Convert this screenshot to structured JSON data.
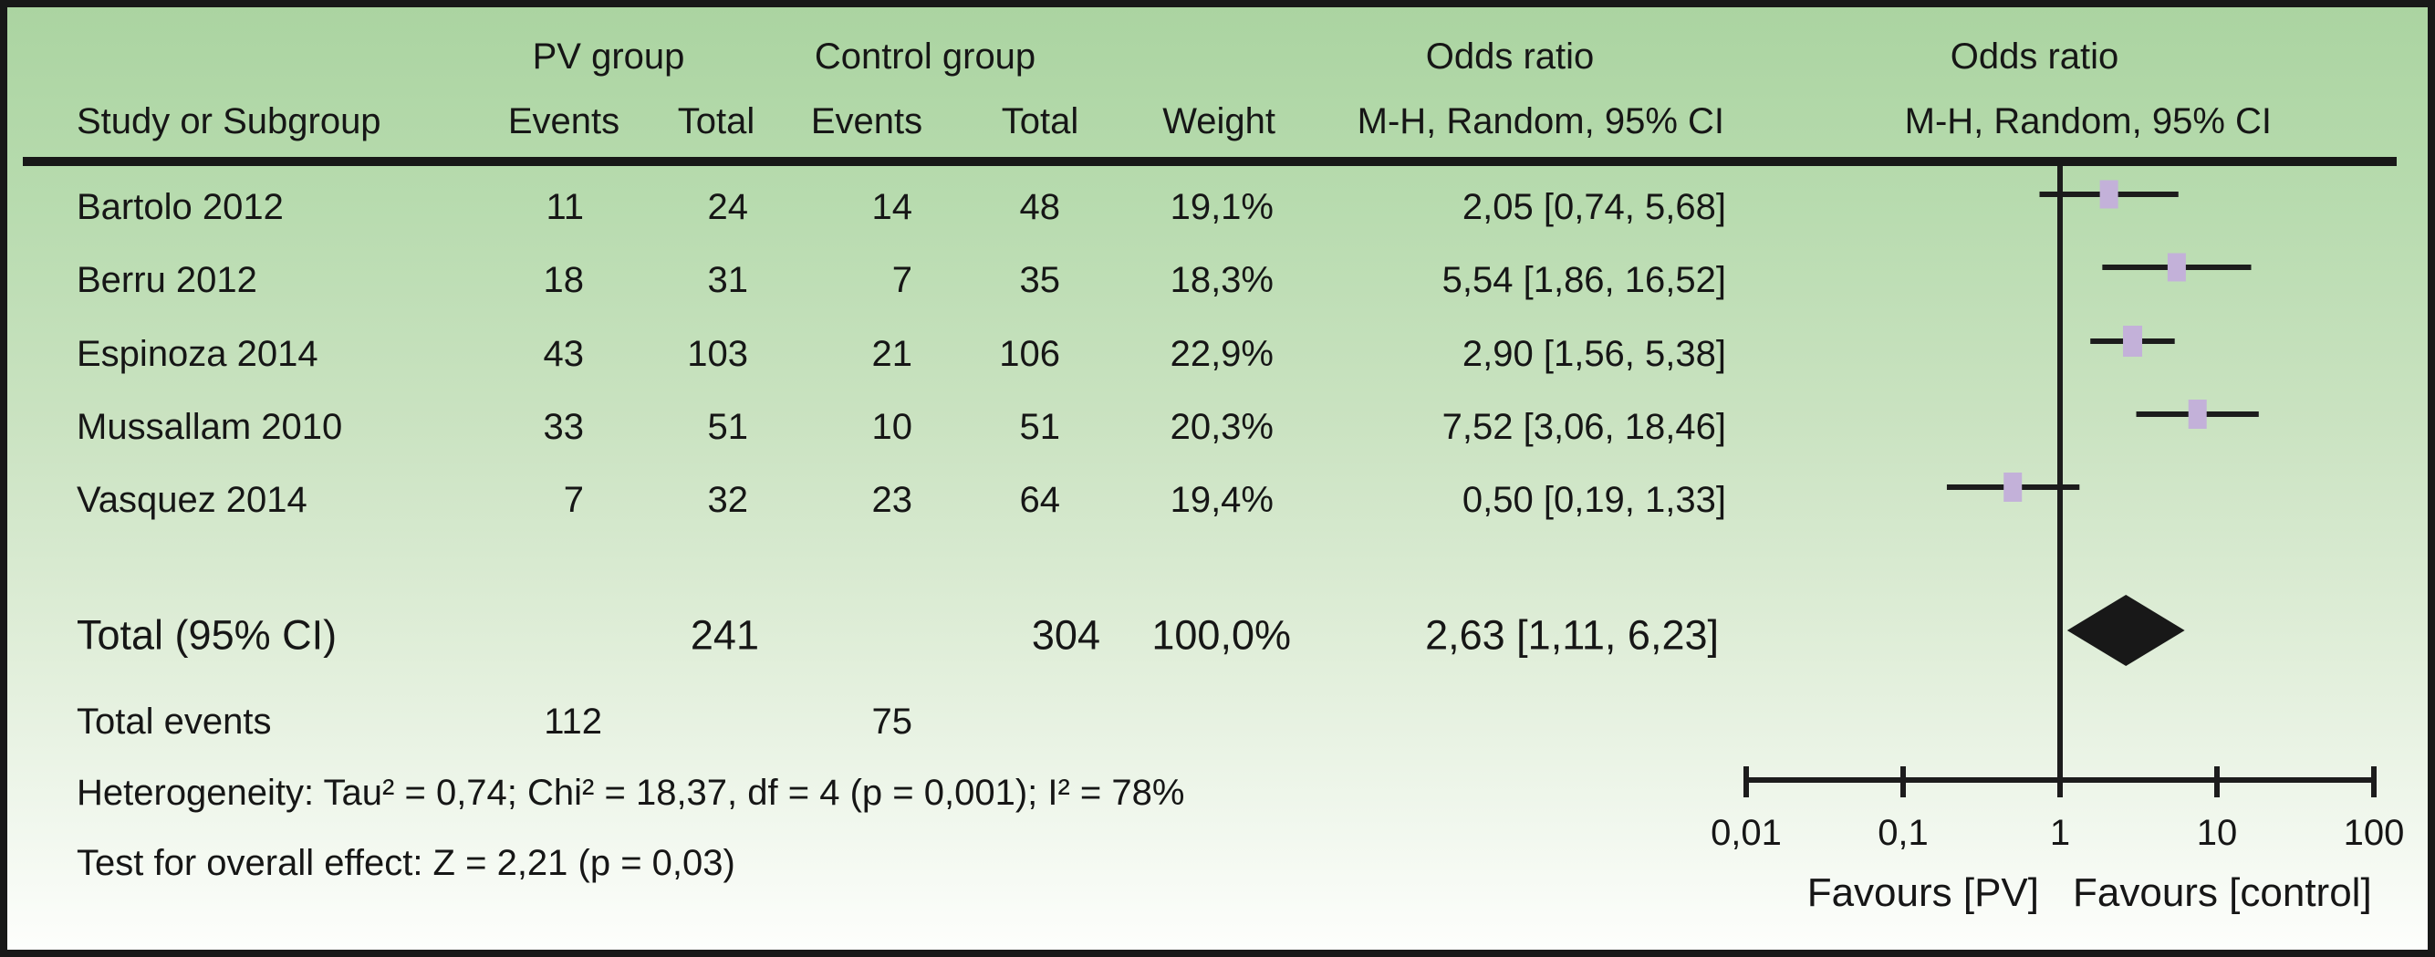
{
  "header": {
    "pv_group": "PV group",
    "control_group": "Control group",
    "odds_ratio_left": "Odds ratio",
    "odds_ratio_right": "Odds ratio",
    "study": "Study or Subgroup",
    "events_pv": "Events",
    "total_pv": "Total",
    "events_control": "Events",
    "total_control": "Total",
    "weight": "Weight",
    "mh_random_left": "M-H, Random, 95% CI",
    "mh_random_right": "M-H, Random, 95% CI"
  },
  "chart_data": {
    "type": "forest",
    "x_scale": "log",
    "x_ticks": [
      0.01,
      0.1,
      1,
      10,
      100
    ],
    "x_tick_labels": [
      "0,01",
      "0,1",
      "1",
      "10",
      "100"
    ],
    "favours_left": "Favours [PV]",
    "favours_right": "Favours [control]",
    "marker_color": "#c3b1d9",
    "line_color": "#1c1c1c",
    "studies": [
      {
        "label": "Bartolo 2012",
        "pv_events": "11",
        "pv_total": "24",
        "control_events": "14",
        "control_total": "48",
        "weight": "19,1%",
        "weight_pct": 19.1,
        "or_ci_text": "2,05 [0,74, 5,68]",
        "or": 2.05,
        "ci_low": 0.74,
        "ci_high": 5.68
      },
      {
        "label": "Berru 2012",
        "pv_events": "18",
        "pv_total": "31",
        "control_events": "7",
        "control_total": "35",
        "weight": "18,3%",
        "weight_pct": 18.3,
        "or_ci_text": "5,54 [1,86, 16,52]",
        "or": 5.54,
        "ci_low": 1.86,
        "ci_high": 16.52
      },
      {
        "label": "Espinoza 2014",
        "pv_events": "43",
        "pv_total": "103",
        "control_events": "21",
        "control_total": "106",
        "weight": "22,9%",
        "weight_pct": 22.9,
        "or_ci_text": "2,90 [1,56, 5,38]",
        "or": 2.9,
        "ci_low": 1.56,
        "ci_high": 5.38
      },
      {
        "label": "Mussallam 2010",
        "pv_events": "33",
        "pv_total": "51",
        "control_events": "10",
        "control_total": "51",
        "weight": "20,3%",
        "weight_pct": 20.3,
        "or_ci_text": "7,52 [3,06, 18,46]",
        "or": 7.52,
        "ci_low": 3.06,
        "ci_high": 18.46
      },
      {
        "label": "Vasquez 2014",
        "pv_events": "7",
        "pv_total": "32",
        "control_events": "23",
        "control_total": "64",
        "weight": "19,4%",
        "weight_pct": 19.4,
        "or_ci_text": "0,50 [0,19, 1,33]",
        "or": 0.5,
        "ci_low": 0.19,
        "ci_high": 1.33
      }
    ],
    "total": {
      "label": "Total (95% CI)",
      "pv_total": "241",
      "control_total": "304",
      "weight": "100,0%",
      "or_ci_text": "2,63 [1,11, 6,23]",
      "or": 2.63,
      "ci_low": 1.11,
      "ci_high": 6.23
    },
    "total_events": {
      "label": "Total events",
      "pv": "112",
      "control": "75"
    },
    "heterogeneity": "Heterogeneity: Tau² = 0,74; Chi² = 18,37, df = 4 (p = 0,001); I² = 78%",
    "overall_effect": "Test for overall effect: Z = 2,21 (p = 0,03)"
  }
}
